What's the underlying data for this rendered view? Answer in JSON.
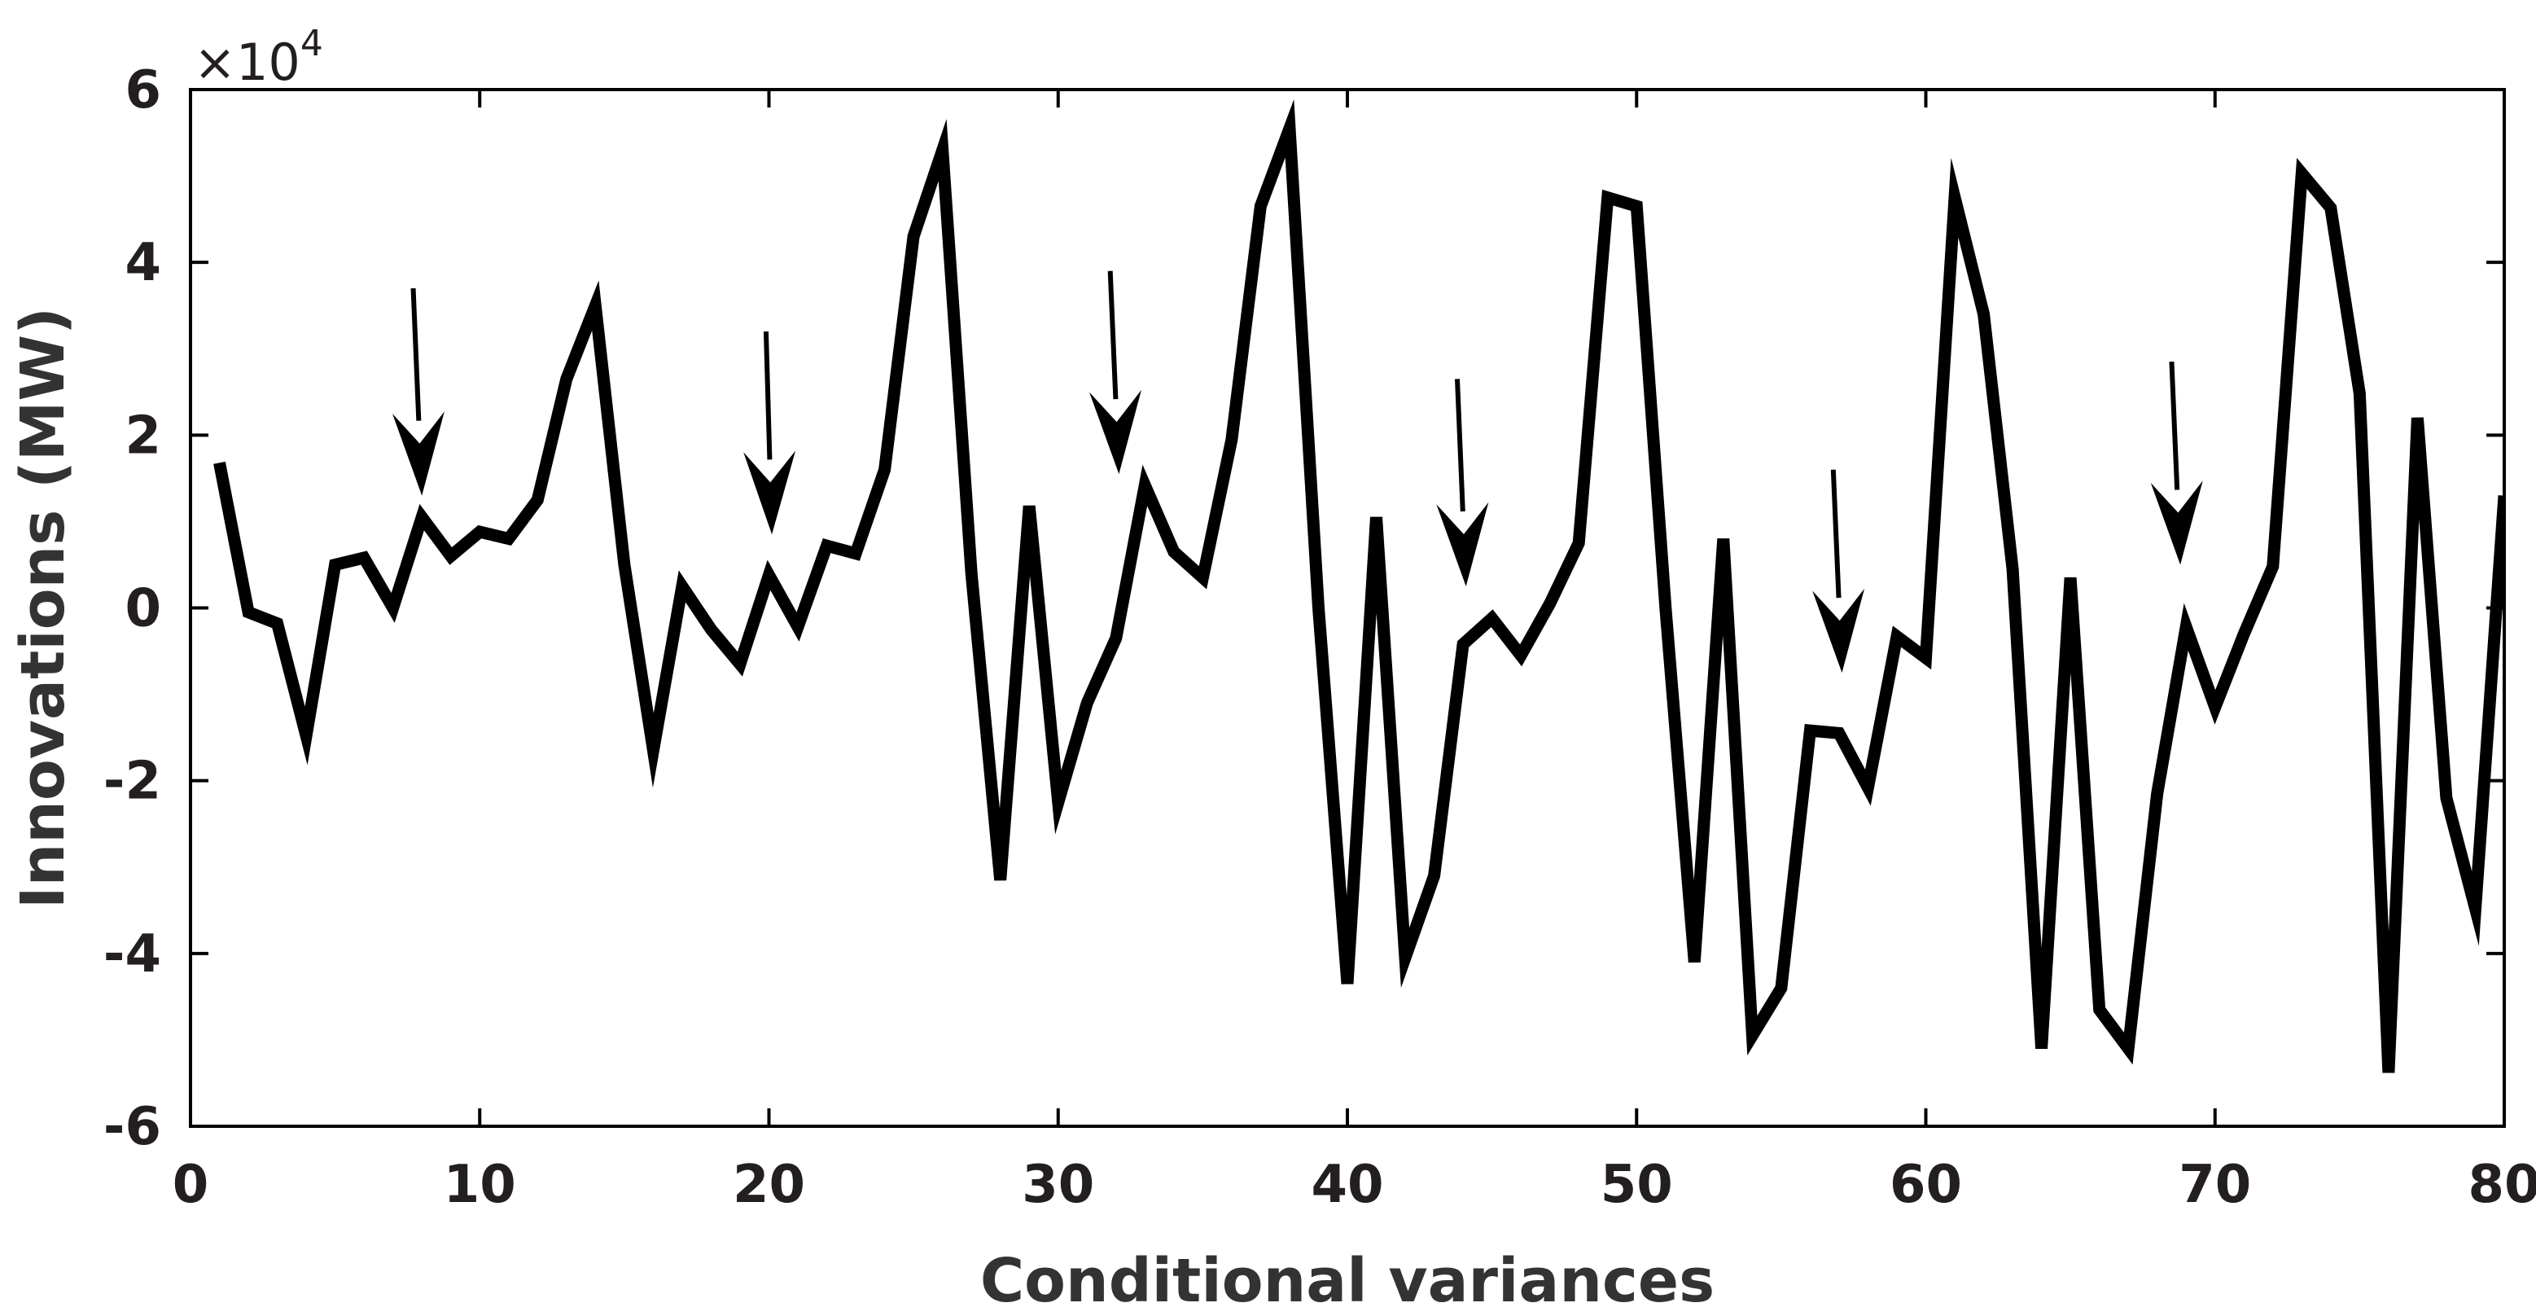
{
  "chart_data": {
    "type": "line",
    "title": "",
    "xlabel": "Conditional variances",
    "ylabel": "Innovations (MW)",
    "y_exponent_label": "×10",
    "y_exponent_power": "4",
    "xlim": [
      0,
      80
    ],
    "ylim": [
      -6,
      6
    ],
    "x_ticks": [
      0,
      10,
      20,
      30,
      40,
      50,
      60,
      70,
      80
    ],
    "x_tick_labels": [
      "0",
      "10",
      "20",
      "30",
      "40",
      "50",
      "60",
      "70",
      "80"
    ],
    "y_ticks": [
      -6,
      -4,
      -2,
      0,
      2,
      4,
      6
    ],
    "y_tick_labels": [
      "-6",
      "-4",
      "-2",
      "0",
      "2",
      "4",
      "6"
    ],
    "grid": false,
    "line_color": "#000000",
    "series": [
      {
        "x": [
          1,
          2,
          3,
          4,
          5,
          6,
          7,
          8,
          9,
          10,
          11,
          12,
          13,
          14,
          15,
          16,
          17,
          18,
          19,
          20,
          21,
          22,
          23,
          24,
          25,
          26,
          27,
          28,
          29,
          30,
          31,
          32,
          33,
          34,
          35,
          36,
          37,
          38,
          39,
          40,
          41,
          42,
          43,
          44,
          45,
          46,
          47,
          48,
          49,
          50,
          51,
          52,
          53,
          54,
          55,
          56,
          57,
          58,
          59,
          60,
          61,
          62,
          63,
          64,
          65,
          66,
          67,
          68,
          69,
          70,
          71,
          72,
          73,
          74,
          75,
          76,
          77,
          78,
          79,
          80
        ],
        "values": [
          1.68,
          -0.05,
          -0.18,
          -1.48,
          0.5,
          0.58,
          0.0,
          1.05,
          0.6,
          0.88,
          0.8,
          1.25,
          2.65,
          3.5,
          0.5,
          -1.65,
          0.25,
          -0.25,
          -0.65,
          0.38,
          -0.22,
          0.72,
          0.63,
          1.6,
          4.3,
          5.3,
          0.4,
          -3.15,
          1.18,
          -2.25,
          -1.1,
          -0.35,
          1.42,
          0.65,
          0.35,
          1.95,
          4.65,
          5.55,
          0.0,
          -4.35,
          1.05,
          -4.05,
          -3.1,
          -0.42,
          -0.12,
          -0.55,
          0.05,
          0.75,
          4.75,
          4.65,
          0.0,
          -4.1,
          0.8,
          -4.95,
          -4.4,
          -1.42,
          -1.45,
          -2.08,
          -0.33,
          -0.58,
          4.75,
          3.4,
          0.45,
          -5.1,
          0.35,
          -4.65,
          -5.1,
          -2.15,
          -0.22,
          -1.15,
          -0.3,
          0.48,
          5.03,
          4.63,
          2.48,
          -5.38,
          2.2,
          -2.2,
          -3.48,
          1.3
        ]
      }
    ],
    "annotations": [
      {
        "type": "arrow",
        "x_tail": 7.7,
        "y_tail": 3.7,
        "x_head": 8.0,
        "y_head": 1.3
      },
      {
        "type": "arrow",
        "x_tail": 19.9,
        "y_tail": 3.2,
        "x_head": 20.1,
        "y_head": 0.85
      },
      {
        "type": "arrow",
        "x_tail": 31.8,
        "y_tail": 3.9,
        "x_head": 32.1,
        "y_head": 1.55
      },
      {
        "type": "arrow",
        "x_tail": 43.8,
        "y_tail": 2.65,
        "x_head": 44.1,
        "y_head": 0.25
      },
      {
        "type": "arrow",
        "x_tail": 56.8,
        "y_tail": 1.6,
        "x_head": 57.1,
        "y_head": -0.75
      },
      {
        "type": "arrow",
        "x_tail": 68.5,
        "y_tail": 2.85,
        "x_head": 68.8,
        "y_head": 0.5
      }
    ]
  }
}
